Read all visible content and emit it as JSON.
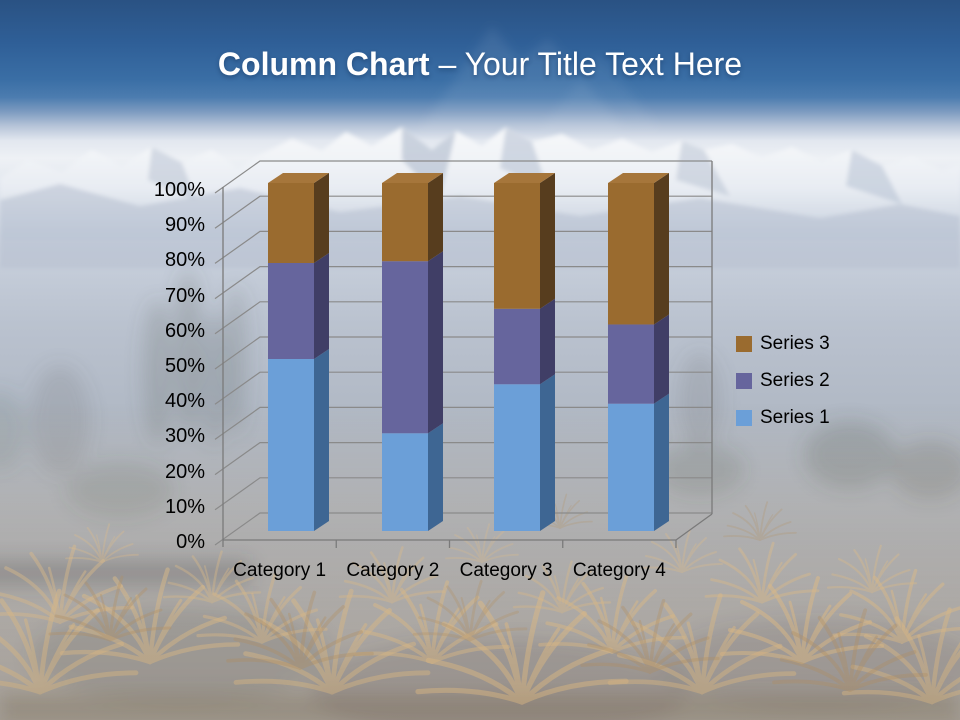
{
  "slide": {
    "title_bold": "Column Chart",
    "title_rest": "– Your Title Text Here",
    "title_color": "#FFFFFF",
    "header_accent": "#2F5F97"
  },
  "chart_data": {
    "type": "bar",
    "subtype": "3d-100-percent-stacked-column",
    "title": "",
    "xlabel": "",
    "ylabel": "",
    "categories": [
      "Category 1",
      "Category 2",
      "Category 3",
      "Category 4"
    ],
    "series": [
      {
        "name": "Series 1",
        "values": [
          4.3,
          2.5,
          3.5,
          4.5
        ],
        "color": "#6B9FD8",
        "side_color": "#3E6693",
        "top_color": "#83B1E0"
      },
      {
        "name": "Series 2",
        "values": [
          2.4,
          4.4,
          1.8,
          2.8
        ],
        "color": "#66659D",
        "side_color": "#403E66",
        "top_color": "#7977AB"
      },
      {
        "name": "Series 3",
        "values": [
          2.0,
          2.0,
          3.0,
          5.0
        ],
        "color": "#9A6B2F",
        "side_color": "#573D1E",
        "top_color": "#A6763B"
      }
    ],
    "percent_segments": {
      "Category 1": [
        49.4,
        27.6,
        23.0
      ],
      "Category 2": [
        28.1,
        49.4,
        22.5
      ],
      "Category 3": [
        42.2,
        21.7,
        36.1
      ],
      "Category 4": [
        36.6,
        22.8,
        40.6
      ]
    },
    "y_axis": {
      "ticks": [
        "0%",
        "10%",
        "20%",
        "30%",
        "40%",
        "50%",
        "60%",
        "70%",
        "80%",
        "90%",
        "100%"
      ],
      "min": 0,
      "max": 100,
      "unit": "percent"
    },
    "legend": {
      "position": "right",
      "entries": [
        "Series 3",
        "Series 2",
        "Series 1"
      ]
    },
    "grid": true,
    "gridline_color": "#8A8A8A",
    "axis_color": "#7A7A7A",
    "text_color": "#000000"
  }
}
